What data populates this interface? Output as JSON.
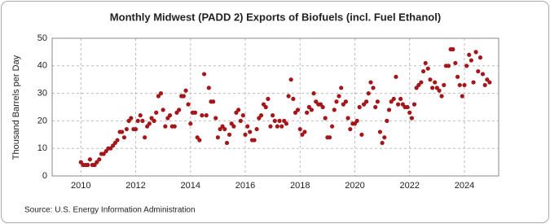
{
  "chart_data": {
    "type": "scatter",
    "title": "Monthly Midwest (PADD 2) Exports of Biofuels (incl. Fuel Ethanol)",
    "ylabel": "Thousand Barrels per Day",
    "source": "Source: U.S. Energy Information Administration",
    "xlim": [
      2008.95,
      2025.25
    ],
    "xticks": [
      2010,
      2012,
      2014,
      2016,
      2018,
      2020,
      2022,
      2024
    ],
    "ylim": [
      0,
      50
    ],
    "yticks": [
      0,
      10,
      20,
      30,
      40,
      50
    ],
    "grid": true,
    "series": [
      {
        "color": "#a4161a",
        "x": [
          2010,
          2010.08,
          2010.17,
          2010.25,
          2010.33,
          2010.42,
          2010.5,
          2010.58,
          2010.67,
          2010.75,
          2010.83,
          2010.92,
          2011,
          2011.08,
          2011.17,
          2011.25,
          2011.33,
          2011.42,
          2011.5,
          2011.58,
          2011.67,
          2011.75,
          2011.83,
          2011.92,
          2012,
          2012.08,
          2012.17,
          2012.25,
          2012.33,
          2012.42,
          2012.5,
          2012.58,
          2012.67,
          2012.75,
          2012.83,
          2012.92,
          2013,
          2013.08,
          2013.17,
          2013.25,
          2013.33,
          2013.42,
          2013.5,
          2013.58,
          2013.67,
          2013.75,
          2013.83,
          2013.92,
          2014,
          2014.08,
          2014.17,
          2014.25,
          2014.33,
          2014.42,
          2014.5,
          2014.58,
          2014.67,
          2014.75,
          2014.83,
          2014.92,
          2015,
          2015.08,
          2015.17,
          2015.25,
          2015.33,
          2015.42,
          2015.5,
          2015.58,
          2015.67,
          2015.75,
          2015.83,
          2015.92,
          2016,
          2016.08,
          2016.17,
          2016.25,
          2016.33,
          2016.42,
          2016.5,
          2016.58,
          2016.67,
          2016.75,
          2016.83,
          2016.92,
          2017,
          2017.08,
          2017.17,
          2017.25,
          2017.33,
          2017.42,
          2017.5,
          2017.58,
          2017.67,
          2017.75,
          2017.83,
          2017.92,
          2018,
          2018.08,
          2018.17,
          2018.25,
          2018.33,
          2018.42,
          2018.5,
          2018.58,
          2018.67,
          2018.75,
          2018.83,
          2018.92,
          2019,
          2019.08,
          2019.17,
          2019.25,
          2019.33,
          2019.42,
          2019.5,
          2019.58,
          2019.67,
          2019.75,
          2019.83,
          2019.92,
          2020,
          2020.08,
          2020.17,
          2020.25,
          2020.33,
          2020.42,
          2020.5,
          2020.58,
          2020.67,
          2020.75,
          2020.83,
          2020.92,
          2021,
          2021.08,
          2021.17,
          2021.25,
          2021.33,
          2021.42,
          2021.5,
          2021.58,
          2021.67,
          2021.75,
          2021.83,
          2021.92,
          2022,
          2022.08,
          2022.17,
          2022.25,
          2022.33,
          2022.42,
          2022.5,
          2022.58,
          2022.67,
          2022.75,
          2022.83,
          2022.92,
          2023,
          2023.08,
          2023.17,
          2023.25,
          2023.33,
          2023.42,
          2023.5,
          2023.58,
          2023.67,
          2023.75,
          2023.83,
          2023.92,
          2024,
          2024.08,
          2024.17,
          2024.25,
          2024.33,
          2024.42,
          2024.5,
          2024.58,
          2024.67,
          2024.75,
          2024.83,
          2024.92
        ],
        "values": [
          5,
          4,
          4,
          4,
          6,
          4,
          4,
          5,
          6,
          8,
          8,
          9,
          10,
          10,
          11,
          12,
          13,
          16,
          16,
          14,
          17,
          20,
          21,
          17,
          17,
          20,
          22,
          20,
          14,
          18,
          19,
          21,
          20,
          23,
          29,
          30,
          24,
          18,
          21,
          22,
          18,
          18,
          23,
          24,
          29,
          29,
          31,
          26,
          19,
          23,
          23,
          14,
          13,
          22,
          37,
          22,
          32,
          27,
          27,
          21,
          14,
          17,
          18,
          17,
          12,
          15,
          19,
          18,
          23,
          24,
          20,
          22,
          15,
          18,
          16,
          13,
          13,
          17,
          21,
          22,
          26,
          25,
          28,
          18,
          22,
          20,
          18,
          20,
          18,
          20,
          19,
          29,
          35,
          28,
          23,
          24,
          17,
          15,
          16,
          23,
          25,
          24,
          30,
          27,
          26,
          26,
          25,
          21,
          14,
          14,
          18,
          24,
          27,
          29,
          32,
          26,
          27,
          21,
          17,
          19,
          19,
          20,
          25,
          15,
          26,
          27,
          30,
          34,
          32,
          25,
          27,
          16,
          12,
          14,
          20,
          24,
          27,
          28,
          36,
          26,
          28,
          26,
          25,
          25,
          23,
          21,
          26,
          32,
          33,
          34,
          38,
          41,
          39,
          35,
          32,
          34,
          32,
          31,
          29,
          33,
          40,
          40,
          46,
          46,
          41,
          36,
          33,
          29,
          33,
          40,
          44,
          42,
          34,
          45,
          38,
          43,
          37,
          33,
          35,
          34
        ]
      }
    ]
  }
}
